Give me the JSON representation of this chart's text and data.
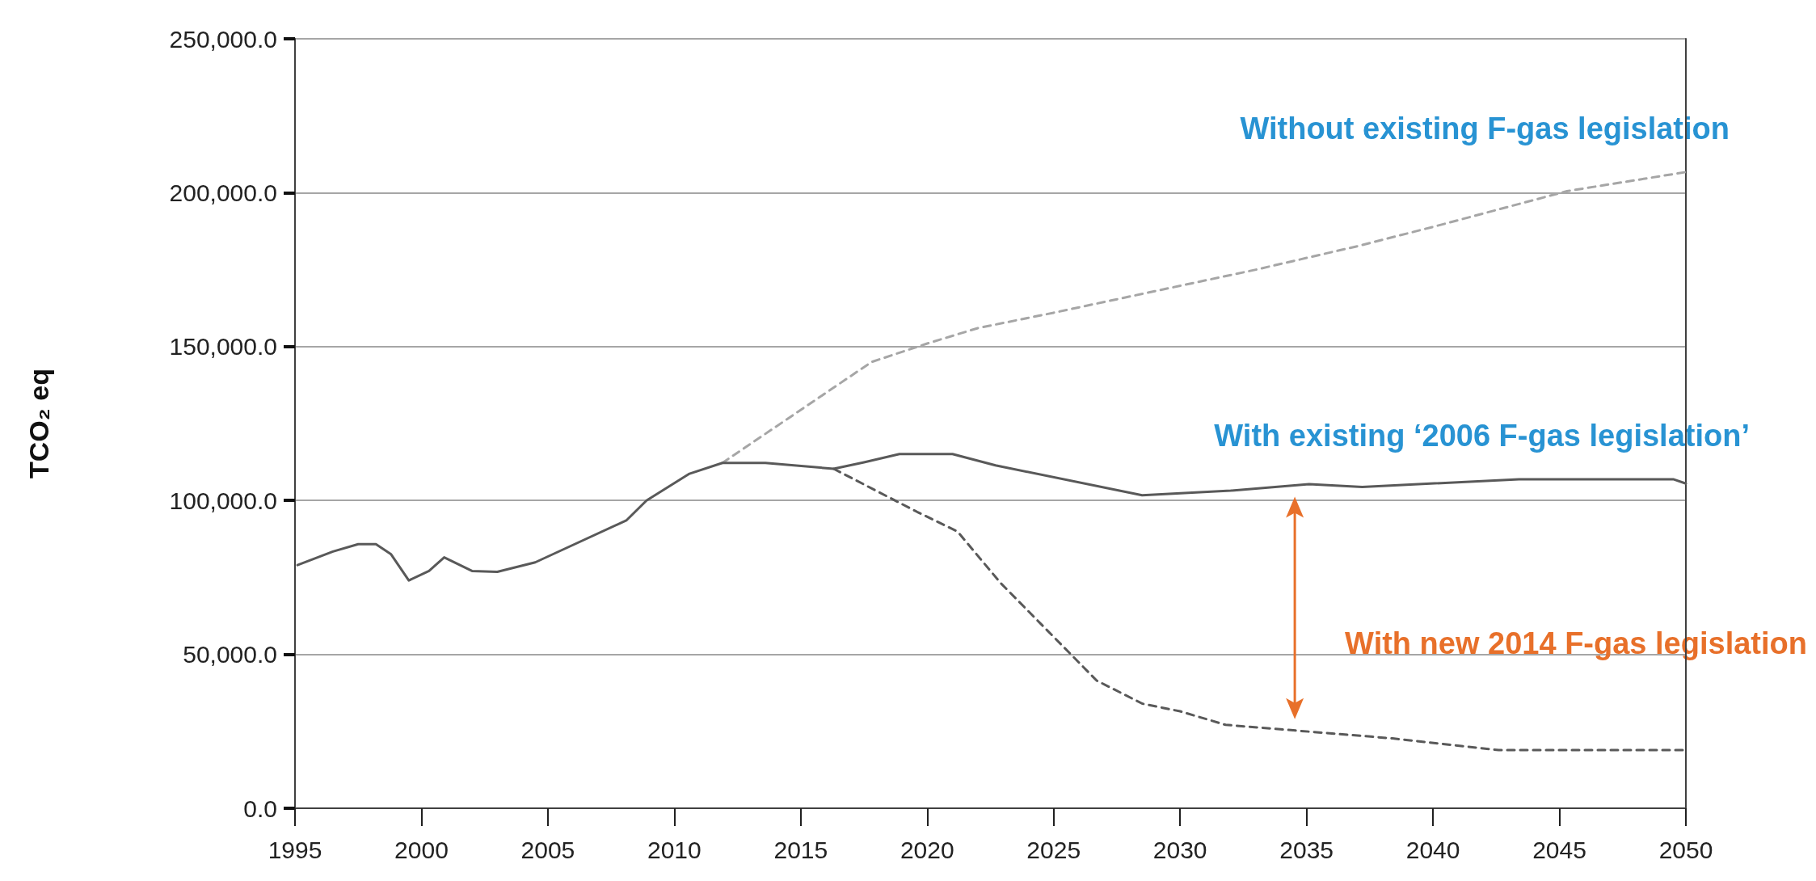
{
  "chart_data": {
    "type": "line",
    "ylabel": "TCO₂ eq",
    "xlim": [
      1995,
      2050
    ],
    "xticks": [
      1995,
      2000,
      2005,
      2010,
      2015,
      2020,
      2025,
      2030,
      2035,
      2040,
      2045,
      2050
    ],
    "ylim": [
      0,
      250000
    ],
    "yticks": [
      {
        "value": 0,
        "label": "0.0"
      },
      {
        "value": 50000,
        "label": "50,000.0"
      },
      {
        "value": 100000,
        "label": "100,000.0"
      },
      {
        "value": 150000,
        "label": "150,000.0"
      },
      {
        "value": 200000,
        "label": "200,000.0"
      },
      {
        "value": 250000,
        "label": "250,000.0"
      }
    ],
    "grid": "y",
    "marker": "none",
    "series": [
      {
        "name": "Without existing F-gas legislation",
        "color": "#a6a6a6",
        "line_style": "dashed",
        "x": [
          2011.9,
          2017.8,
          2020,
          2022,
          2025,
          2029,
          2033,
          2037,
          2040.1,
          2045.3,
          2050
        ],
        "values": [
          112200,
          145000,
          151000,
          156000,
          161000,
          168000,
          175000,
          182600,
          189100,
          200500,
          206700
        ]
      },
      {
        "name": "With existing ‘2006 F-gas legislation’",
        "color": "#595959",
        "line_style": "solid",
        "x": [
          1995.1,
          1996.5,
          1997.5,
          1998.2,
          1998.8,
          1999.5,
          2000.3,
          2000.9,
          2002,
          2003,
          2004.5,
          2008.1,
          2008.9,
          2010.6,
          2011.9,
          2013.6,
          2016.3,
          2017.5,
          2018.9,
          2021,
          2022.7,
          2028.5,
          2032,
          2035.1,
          2037.2,
          2043.4,
          2049.5,
          2050
        ],
        "values": [
          79000,
          83400,
          85800,
          85800,
          82500,
          74000,
          77100,
          81500,
          77100,
          76800,
          79900,
          93500,
          100000,
          108700,
          112200,
          112200,
          110300,
          112400,
          115100,
          115100,
          111400,
          101700,
          103200,
          105300,
          104400,
          106900,
          106900,
          105500
        ]
      },
      {
        "name": "With new 2014 F-gas legislation",
        "color": "#595959",
        "line_style": "dashed",
        "x": [
          2016.3,
          2019.6,
          2021.2,
          2022.9,
          2026.7,
          2028.5,
          2030,
          2031.8,
          2038.4,
          2042.6,
          2050
        ],
        "values": [
          110300,
          96300,
          89900,
          73200,
          41500,
          34000,
          31500,
          27100,
          22700,
          18900,
          18900
        ]
      }
    ]
  }
}
